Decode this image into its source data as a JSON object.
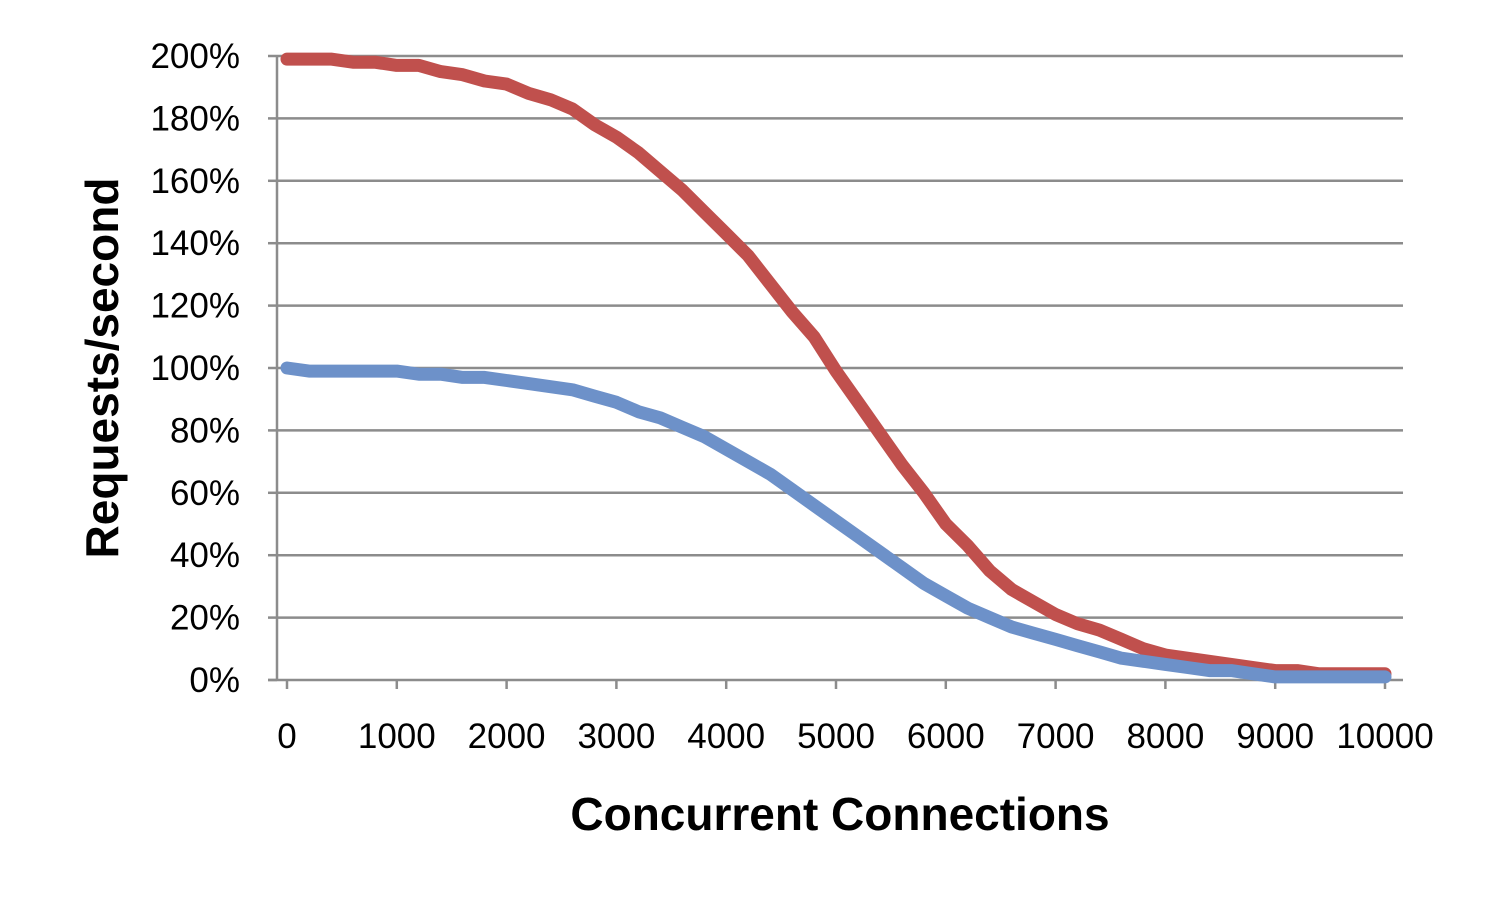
{
  "chart_data": {
    "type": "line",
    "xlabel": "Concurrent Connections",
    "ylabel": "Requests/second",
    "xlim": [
      0,
      10000
    ],
    "ylim": [
      0,
      200
    ],
    "x_ticks": [
      0,
      1000,
      2000,
      3000,
      4000,
      5000,
      6000,
      7000,
      8000,
      9000,
      10000
    ],
    "x_tick_labels": [
      "0",
      "1000",
      "2000",
      "3000",
      "4000",
      "5000",
      "6000",
      "7000",
      "8000",
      "9000",
      "10000"
    ],
    "y_ticks": [
      0,
      20,
      40,
      60,
      80,
      100,
      120,
      140,
      160,
      180,
      200
    ],
    "y_tick_labels": [
      "0%",
      "20%",
      "40%",
      "60%",
      "80%",
      "100%",
      "120%",
      "140%",
      "160%",
      "180%",
      "200%"
    ],
    "grid": true,
    "legend": "none",
    "series": [
      {
        "color": "#c0504d",
        "x": [
          0,
          200,
          400,
          600,
          800,
          1000,
          1200,
          1400,
          1600,
          1800,
          2000,
          2200,
          2400,
          2600,
          2800,
          3000,
          3200,
          3400,
          3600,
          3800,
          4000,
          4200,
          4400,
          4600,
          4800,
          5000,
          5200,
          5400,
          5600,
          5800,
          6000,
          6200,
          6400,
          6600,
          6800,
          7000,
          7200,
          7400,
          7600,
          7800,
          8000,
          8200,
          8400,
          8600,
          8800,
          9000,
          9200,
          9400,
          9600,
          9800,
          10000
        ],
        "values": [
          199,
          199,
          199,
          198,
          198,
          197,
          197,
          195,
          194,
          192,
          191,
          188,
          186,
          183,
          178,
          174,
          169,
          163,
          157,
          150,
          143,
          136,
          127,
          118,
          110,
          99,
          89,
          79,
          69,
          60,
          50,
          43,
          35,
          29,
          25,
          21,
          18,
          16,
          13,
          10,
          8,
          7,
          6,
          5,
          4,
          3,
          3,
          2,
          2,
          2,
          2
        ]
      },
      {
        "color": "#6d91c9",
        "x": [
          0,
          200,
          400,
          600,
          800,
          1000,
          1200,
          1400,
          1600,
          1800,
          2000,
          2200,
          2400,
          2600,
          2800,
          3000,
          3200,
          3400,
          3600,
          3800,
          4000,
          4200,
          4400,
          4600,
          4800,
          5000,
          5200,
          5400,
          5600,
          5800,
          6000,
          6200,
          6400,
          6600,
          6800,
          7000,
          7200,
          7400,
          7600,
          7800,
          8000,
          8200,
          8400,
          8600,
          8800,
          9000,
          9200,
          9400,
          9600,
          9800,
          10000
        ],
        "values": [
          100,
          99,
          99,
          99,
          99,
          99,
          98,
          98,
          97,
          97,
          96,
          95,
          94,
          93,
          91,
          89,
          86,
          84,
          81,
          78,
          74,
          70,
          66,
          61,
          56,
          51,
          46,
          41,
          36,
          31,
          27,
          23,
          20,
          17,
          15,
          13,
          11,
          9,
          7,
          6,
          5,
          4,
          3,
          3,
          2,
          1,
          1,
          1,
          1,
          1,
          1
        ]
      }
    ]
  }
}
